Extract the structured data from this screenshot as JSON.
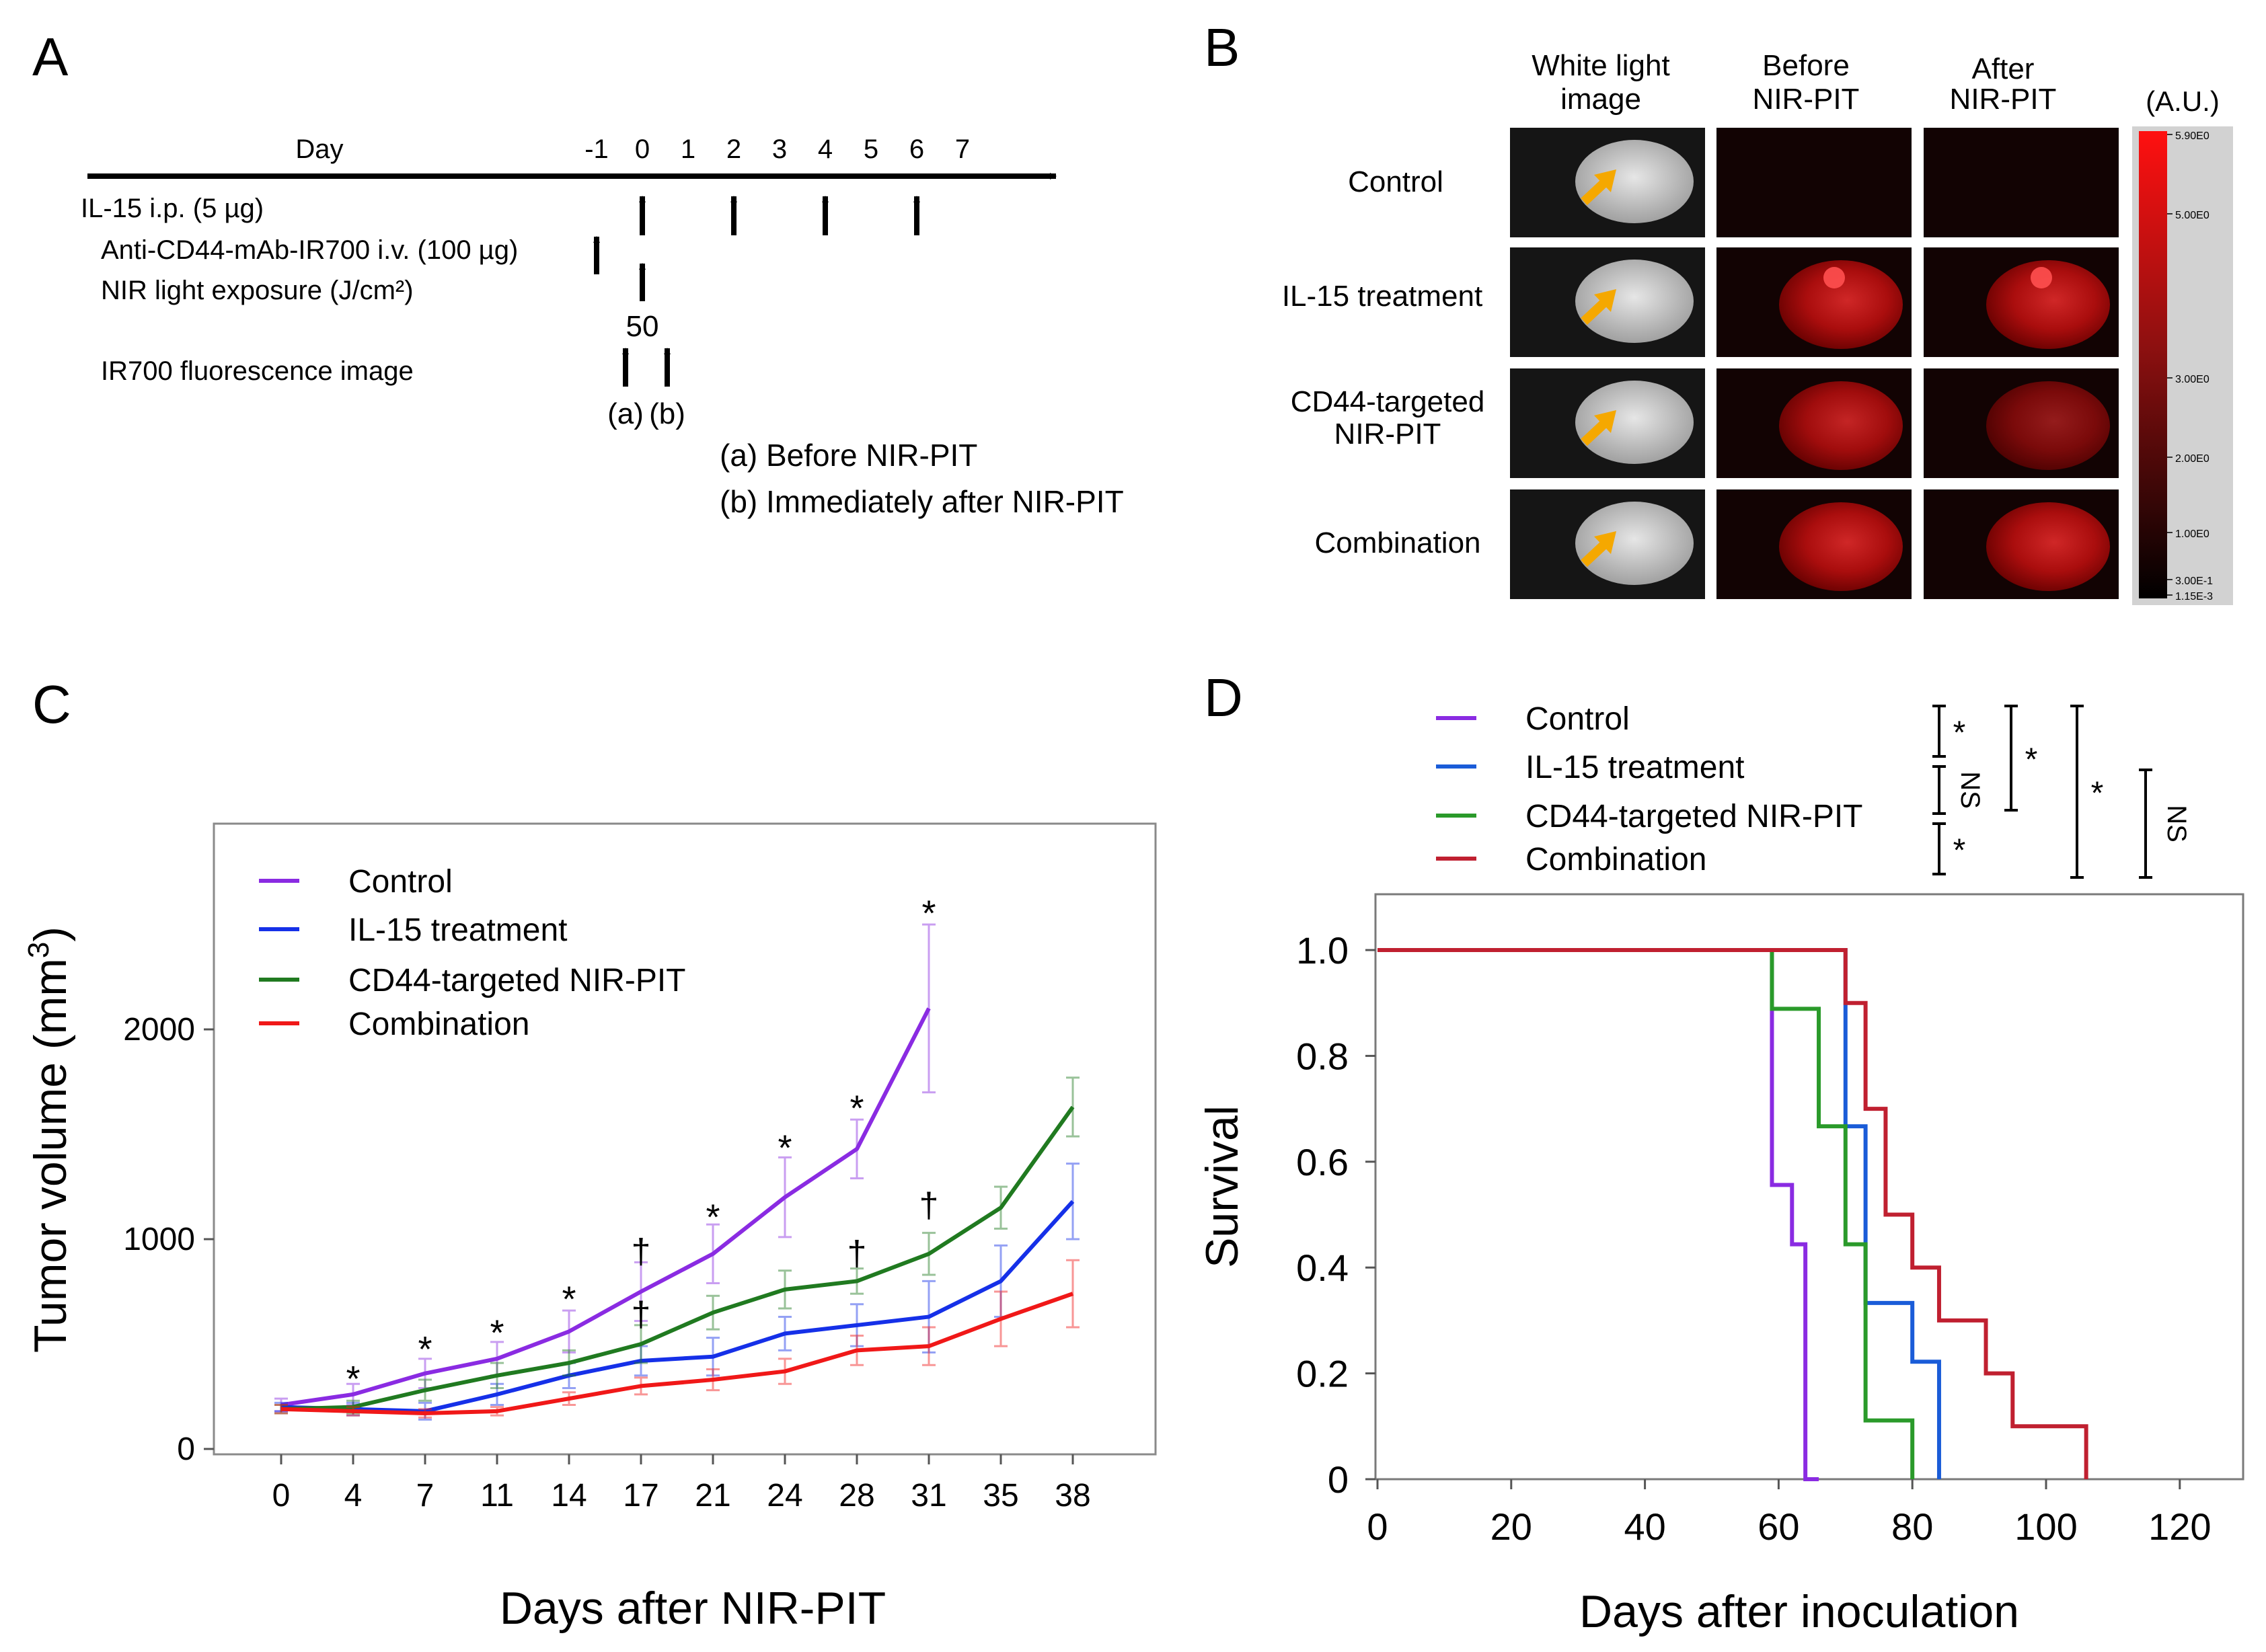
{
  "panels": {
    "A": "A",
    "B": "B",
    "C": "C",
    "D": "D"
  },
  "timeline": {
    "day_label": "Day",
    "days": [
      "-1",
      "0",
      "1",
      "2",
      "3",
      "4",
      "5",
      "6",
      "7"
    ],
    "rows": [
      "IL-15 i.p. (5 µg)",
      "Anti-CD44-mAb-IR700  i.v. (100 µg)",
      "NIR light exposure (J/cm²)",
      "IR700 fluorescence image"
    ],
    "dose": "50",
    "marker_a": "(a)",
    "marker_b": "(b)",
    "legend_a": "(a) Before NIR-PIT",
    "legend_b": "(b) Immediately after NIR-PIT",
    "il15_days": [
      0,
      2,
      4,
      6
    ],
    "antibody_day": -1,
    "nir_day": 0
  },
  "imaging": {
    "columns": [
      "White light image",
      "Before NIR-PIT",
      "After NIR-PIT"
    ],
    "rows": [
      "Control",
      "IL-15 treatment",
      "CD44-targeted NIR-PIT",
      "Combination"
    ],
    "colorbar_label": "(A.U.)",
    "colorbar_ticks": [
      "5.90E0",
      "5.00E0",
      "3.00E0",
      "2.00E0",
      "1.00E0",
      "3.00E-1",
      "1.15E-3"
    ],
    "signal": {
      "before": [
        0,
        0.8,
        0.75,
        0.8
      ],
      "after": [
        0,
        0.8,
        0.55,
        0.8
      ]
    },
    "colors": {
      "signal": "#d01010",
      "tumor": "#c4c4c4",
      "arrow": "#f5a800"
    }
  },
  "chart_data": [
    {
      "type": "line",
      "panel": "C",
      "title": "",
      "xlabel": "Days after NIR-PIT",
      "ylabel": "Tumor volume (mm³)",
      "categories": [
        "0",
        "4",
        "7",
        "11",
        "14",
        "17",
        "21",
        "24",
        "28",
        "31",
        "35",
        "38"
      ],
      "ylim": [
        0,
        2900
      ],
      "yticks": [
        "0",
        "1000",
        "2000"
      ],
      "series": [
        {
          "name": "Control",
          "color": "#8a2be2",
          "values": [
            210,
            260,
            360,
            430,
            560,
            750,
            930,
            1200,
            1430,
            2100,
            null,
            null
          ],
          "errors": [
            30,
            50,
            70,
            80,
            100,
            140,
            140,
            190,
            140,
            400,
            null,
            null
          ]
        },
        {
          "name": "IL-15 treatment",
          "color": "#1530e8",
          "values": [
            200,
            190,
            180,
            260,
            350,
            420,
            440,
            550,
            590,
            630,
            800,
            1180
          ],
          "errors": [
            20,
            30,
            40,
            50,
            60,
            70,
            90,
            80,
            100,
            170,
            170,
            180
          ]
        },
        {
          "name": "CD44-targeted NIR-PIT",
          "color": "#207a20",
          "values": [
            190,
            200,
            280,
            350,
            410,
            500,
            650,
            760,
            800,
            930,
            1150,
            1630
          ],
          "errors": [
            20,
            30,
            50,
            60,
            60,
            90,
            80,
            90,
            60,
            100,
            100,
            140
          ]
        },
        {
          "name": "Combination",
          "color": "#f01818",
          "values": [
            190,
            180,
            170,
            180,
            240,
            300,
            330,
            370,
            470,
            490,
            620,
            740
          ],
          "errors": [
            20,
            20,
            20,
            20,
            30,
            40,
            50,
            60,
            70,
            90,
            130,
            160
          ]
        }
      ],
      "annotations": [
        {
          "text": "*",
          "x": "4",
          "y": 340
        },
        {
          "text": "*",
          "x": "7",
          "y": 480
        },
        {
          "text": "*",
          "x": "11",
          "y": 560
        },
        {
          "text": "*",
          "x": "14",
          "y": 720
        },
        {
          "text": "†",
          "x": "17",
          "y": 950
        },
        {
          "text": "†",
          "x": "17",
          "y": 650
        },
        {
          "text": "*",
          "x": "21",
          "y": 1110
        },
        {
          "text": "*",
          "x": "24",
          "y": 1440
        },
        {
          "text": "*",
          "x": "28",
          "y": 1630
        },
        {
          "text": "†",
          "x": "28",
          "y": 940
        },
        {
          "text": "†",
          "x": "31",
          "y": 1170
        },
        {
          "text": "*",
          "x": "31",
          "y": 2560
        }
      ]
    },
    {
      "type": "line",
      "panel": "D",
      "title": "",
      "xlabel": "Days after inoculation",
      "ylabel": "Survival",
      "xlim": [
        0,
        130
      ],
      "ylim": [
        0,
        1.1
      ],
      "xticks": [
        "0",
        "20",
        "40",
        "60",
        "80",
        "100",
        "120"
      ],
      "yticks": [
        "0",
        "0.2",
        "0.4",
        "0.6",
        "0.8",
        "1.0"
      ],
      "series": [
        {
          "name": "Control",
          "color": "#8a2be2",
          "step_x": [
            0,
            59,
            62,
            64,
            66
          ],
          "step_y": [
            1.0,
            0.556,
            0.444,
            0.0,
            0.0
          ]
        },
        {
          "name": "IL-15 treatment",
          "color": "#1a5cd8",
          "step_x": [
            0,
            70,
            73,
            80,
            84
          ],
          "step_y": [
            1.0,
            0.667,
            0.333,
            0.222,
            0.0
          ]
        },
        {
          "name": "CD44-targeted NIR-PIT",
          "color": "#2a9a2a",
          "step_x": [
            0,
            59,
            66,
            70,
            73,
            80
          ],
          "step_y": [
            1.0,
            0.889,
            0.667,
            0.444,
            0.111,
            0.0
          ]
        },
        {
          "name": "Combination",
          "color": "#c02030",
          "step_x": [
            0,
            70,
            73,
            76,
            80,
            84,
            91,
            95,
            99,
            106
          ],
          "step_y": [
            1.0,
            0.9,
            0.7,
            0.5,
            0.4,
            0.3,
            0.2,
            0.1,
            0.1,
            0.0
          ]
        }
      ],
      "significance": [
        {
          "label": "*",
          "pair": [
            "Control",
            "IL-15 treatment"
          ]
        },
        {
          "label": "NS",
          "pair": [
            "IL-15 treatment",
            "CD44-targeted NIR-PIT"
          ]
        },
        {
          "label": "*",
          "pair": [
            "CD44-targeted NIR-PIT",
            "Combination"
          ]
        },
        {
          "label": "*",
          "pair": [
            "Control",
            "CD44-targeted NIR-PIT"
          ]
        },
        {
          "label": "*",
          "pair": [
            "Control",
            "Combination"
          ]
        },
        {
          "label": "NS",
          "pair": [
            "IL-15 treatment",
            "Combination"
          ]
        }
      ]
    }
  ]
}
